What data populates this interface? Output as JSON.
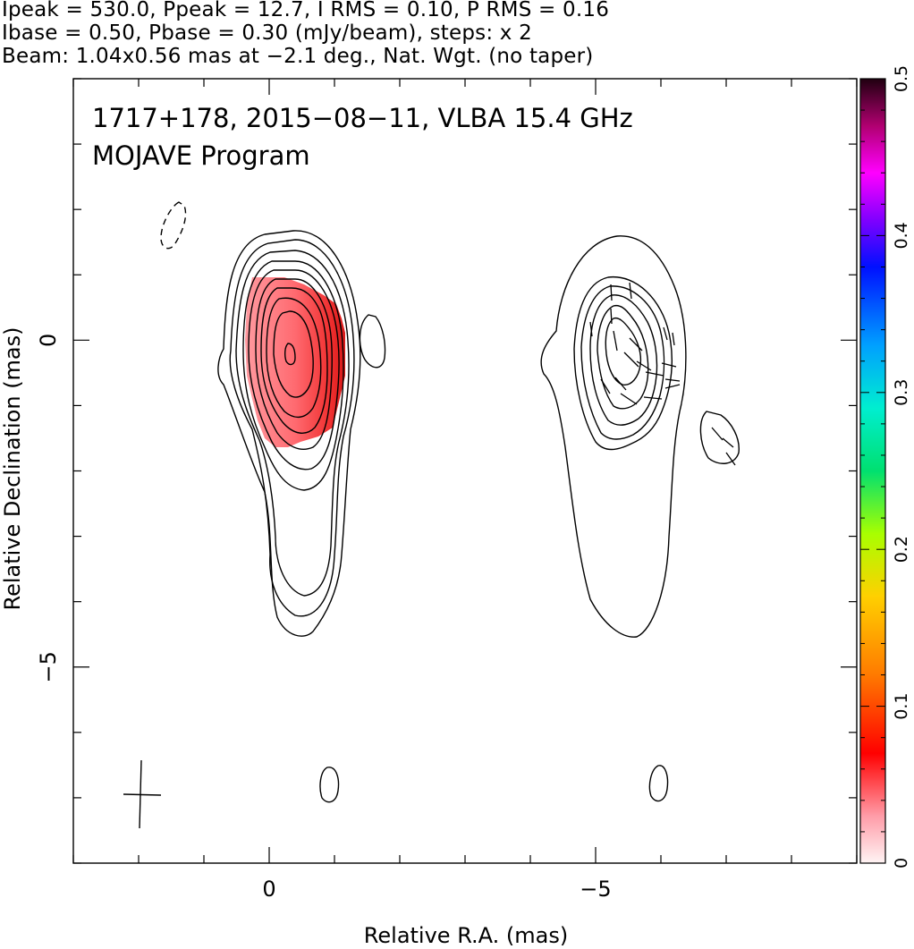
{
  "header": {
    "line1": "Ipeak = 530.0, Ppeak = 12.7, I RMS = 0.10, P RMS = 0.16",
    "line2": "Ibase = 0.50, Pbase = 0.30 (mJy/beam), steps: x 2",
    "line3": "Beam: 1.04x0.56 mas at −2.1 deg., Nat. Wgt. (no taper)"
  },
  "chart_data": {
    "type": "heatmap",
    "title": "1717+178, 2015−08−11, VLBA 15.4 GHz",
    "subtitle": "MOJAVE Program",
    "xlabel": "Relative R.A. (mas)",
    "ylabel": "Relative Declination (mas)",
    "xlim": [
      3.0,
      -9.0
    ],
    "ylim": [
      -8.0,
      4.0
    ],
    "x_ticks": [
      {
        "value": 0,
        "label": "0"
      },
      {
        "value": -5,
        "label": "−5"
      }
    ],
    "y_ticks": [
      {
        "value": 0,
        "label": "0"
      },
      {
        "value": -5,
        "label": "−5"
      }
    ],
    "colorbar": {
      "range": [
        0,
        0.5
      ],
      "ticks": [
        {
          "value": 0,
          "label": "0"
        },
        {
          "value": 0.1,
          "label": "0.1"
        },
        {
          "value": 0.2,
          "label": "0.2"
        },
        {
          "value": 0.3,
          "label": "0.3"
        },
        {
          "value": 0.4,
          "label": "0.4"
        },
        {
          "value": 0.5,
          "label": "0.5"
        }
      ]
    },
    "panels": [
      {
        "name": "total-intensity-with-fractional-polarization",
        "x_offset": 0,
        "peak_position": [
          0.1,
          -0.2
        ],
        "contour_levels_mJy": [
          0.5,
          1,
          2,
          4,
          8,
          16,
          32,
          64,
          128,
          256
        ],
        "negative_contour_position": [
          1.7,
          1.75
        ],
        "fractional_polarization_region": {
          "x": [
            -0.9,
            0.5
          ],
          "y": [
            -1.6,
            0.95
          ],
          "peak_value": 0.1
        }
      },
      {
        "name": "polarized-intensity-with-evpa",
        "x_offset": -5,
        "contour_levels_mJy": [
          0.3,
          0.6,
          1.2,
          2.4,
          4.8,
          9.6
        ],
        "peak_position": [
          -5.4,
          -0.3
        ]
      }
    ],
    "beam": {
      "major_mas": 1.04,
      "minor_mas": 0.56,
      "pa_deg": -2.1,
      "position": [
        2.2,
        -6.9
      ]
    },
    "colors": {
      "contour": "#000000",
      "frac_pol_low": "#ffc8c8",
      "frac_pol_high": "#e02020"
    }
  }
}
